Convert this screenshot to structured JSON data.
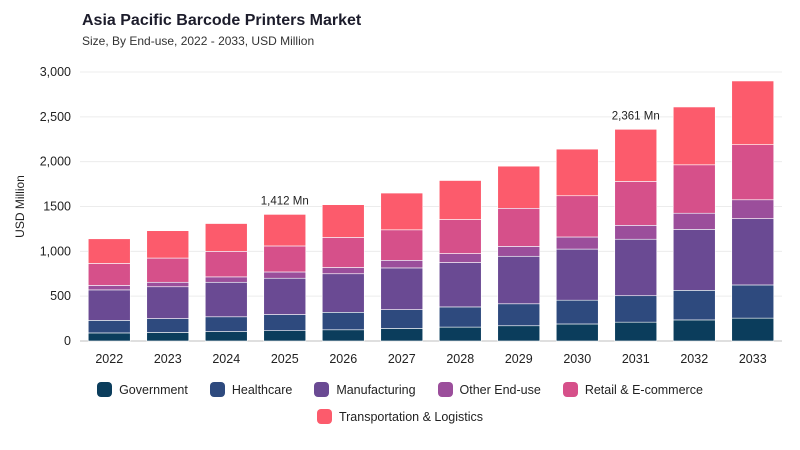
{
  "header": {
    "title": "Asia Pacific Barcode Printers Market",
    "subtitle": "Size, By End-use, 2022 - 2033, USD Million"
  },
  "chart_data": {
    "type": "bar",
    "stacked": true,
    "ylabel": "USD Million",
    "ylim": [
      0,
      3000
    ],
    "yticks": [
      0,
      500,
      1000,
      1500,
      2000,
      2500,
      3000
    ],
    "ytick_labels": [
      "0",
      "500",
      "1,000",
      "1500",
      "2,000",
      "2,500",
      "3,000"
    ],
    "grid": true,
    "legend_position": "bottom",
    "categories": [
      "2022",
      "2023",
      "2024",
      "2025",
      "2026",
      "2027",
      "2028",
      "2029",
      "2030",
      "2031",
      "2032",
      "2033"
    ],
    "series": [
      {
        "name": "Government",
        "color": "#0b3d5c",
        "values": [
          90,
          95,
          105,
          115,
          125,
          140,
          155,
          170,
          190,
          210,
          235,
          255
        ]
      },
      {
        "name": "Healthcare",
        "color": "#2e4a7e",
        "values": [
          140,
          155,
          165,
          180,
          195,
          210,
          225,
          245,
          265,
          295,
          330,
          370
        ]
      },
      {
        "name": "Manufacturing",
        "color": "#6a4a93",
        "values": [
          340,
          355,
          385,
          405,
          430,
          465,
          495,
          530,
          570,
          630,
          680,
          740
        ]
      },
      {
        "name": "Other End-use",
        "color": "#9b4e9b",
        "values": [
          50,
          50,
          60,
          70,
          70,
          85,
          100,
          110,
          135,
          155,
          180,
          210
        ]
      },
      {
        "name": "Retail & E-commerce",
        "color": "#d6508a",
        "values": [
          245,
          270,
          285,
          290,
          335,
          340,
          380,
          425,
          460,
          490,
          540,
          615
        ]
      },
      {
        "name": "Transportation & Logistics",
        "color": "#fc5b6c",
        "values": [
          275,
          305,
          310,
          352,
          365,
          410,
          435,
          470,
          520,
          581,
          645,
          710
        ]
      }
    ],
    "annotations": [
      {
        "category": "2025",
        "value": 1412,
        "text": "1,412 Mn"
      },
      {
        "category": "2031",
        "value": 2361,
        "text": "2,361 Mn"
      }
    ]
  }
}
